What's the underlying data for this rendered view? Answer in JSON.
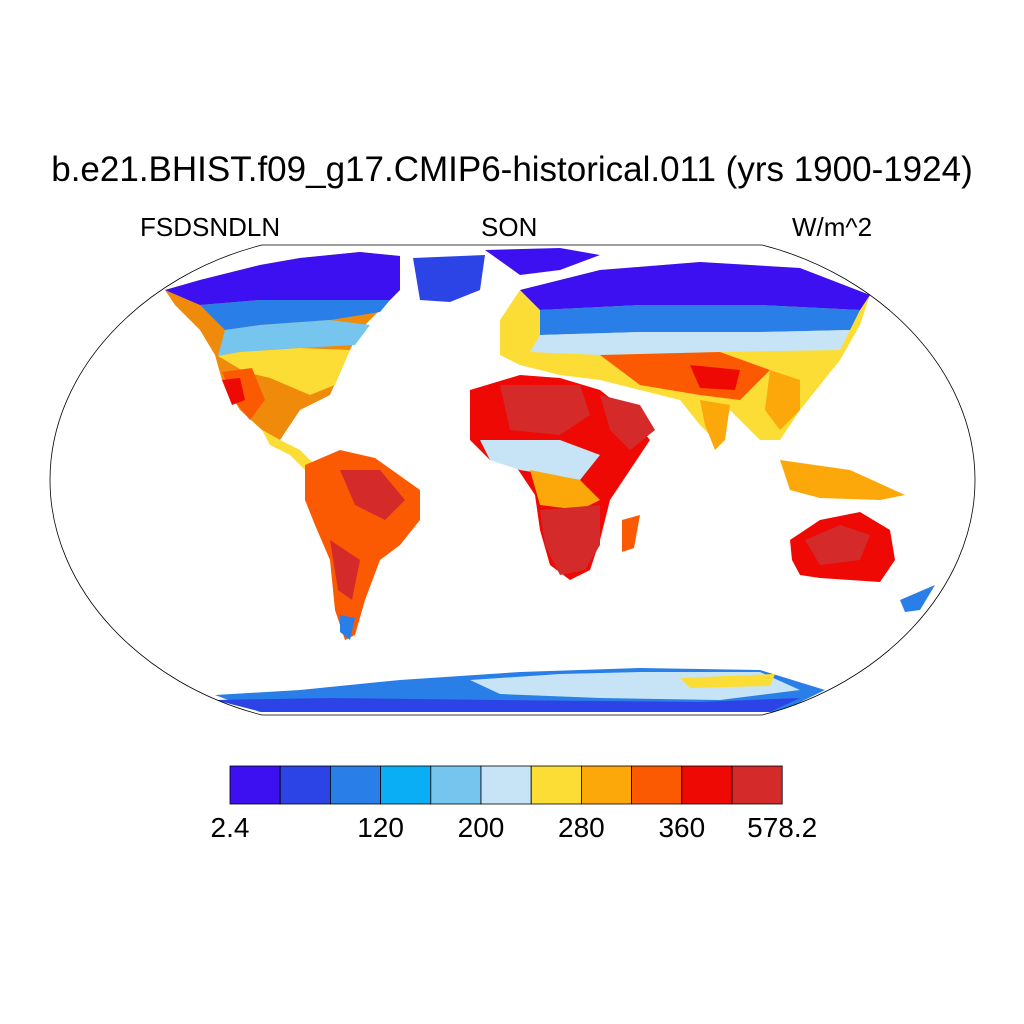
{
  "title": "b.e21.BHIST.f09_g17.CMIP6-historical.011 (yrs 1900-1924)",
  "subtitle_left": "FSDSNDLN",
  "subtitle_center": "SON",
  "subtitle_right": "W/m^2",
  "colorbar": {
    "colors": [
      "#3c10f0",
      "#2c44e6",
      "#2a7ee8",
      "#09aef5",
      "#76c5ee",
      "#c6e4f6",
      "#fbdd36",
      "#fca80a",
      "#fb5a02",
      "#ee0905",
      "#d42a2a"
    ],
    "labels": [
      {
        "text": "2.4",
        "boundary": 0
      },
      {
        "text": "120",
        "boundary": 3
      },
      {
        "text": "200",
        "boundary": 5
      },
      {
        "text": "280",
        "boundary": 7
      },
      {
        "text": "360",
        "boundary": 9
      },
      {
        "text": "578.2",
        "boundary": 11
      }
    ]
  }
}
